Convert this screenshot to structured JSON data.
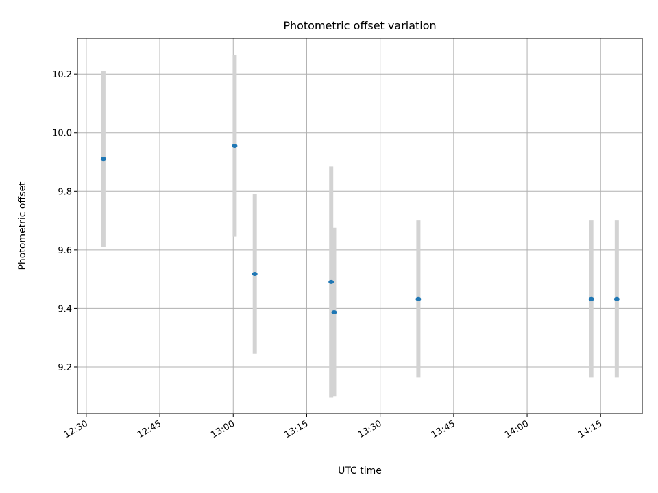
{
  "chart_data": {
    "type": "scatter",
    "title": "Photometric offset variation",
    "xlabel": "UTC time",
    "ylabel": "Photometric offset",
    "xlim": [
      "12:28:12",
      "14:23:30"
    ],
    "ylim": [
      9.041,
      10.322
    ],
    "grid": true,
    "xticks": [
      "12:30",
      "12:45",
      "13:00",
      "13:15",
      "13:30",
      "13:45",
      "14:00",
      "14:15"
    ],
    "yticks": [
      "9.2",
      "9.4",
      "9.6",
      "9.8",
      "10.0",
      "10.2"
    ],
    "points": [
      {
        "x": "12:33:30",
        "y": 9.91,
        "err": 0.3
      },
      {
        "x": "13:00:18",
        "y": 9.955,
        "err": 0.31
      },
      {
        "x": "13:04:24",
        "y": 9.518,
        "err": 0.273
      },
      {
        "x": "13:20:00",
        "y": 9.49,
        "err": 0.394
      },
      {
        "x": "13:20:36",
        "y": 9.387,
        "err": 0.288
      },
      {
        "x": "13:37:48",
        "y": 9.432,
        "err": 0.268
      },
      {
        "x": "14:13:06",
        "y": 9.432,
        "err": 0.268
      },
      {
        "x": "14:18:18",
        "y": 9.432,
        "err": 0.268
      }
    ],
    "colors": {
      "point": "#1f77b4",
      "errorbar": "#d3d3d3"
    }
  }
}
